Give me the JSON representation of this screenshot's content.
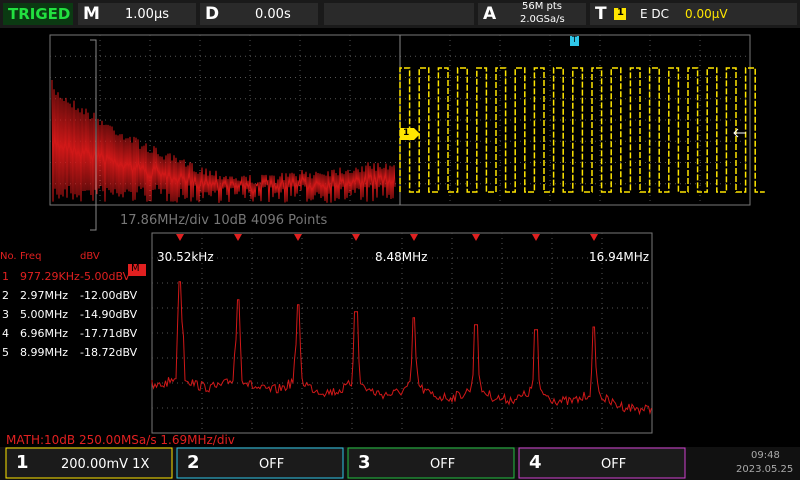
{
  "top_bar": {
    "status": "TRIGED",
    "timebase_key": "M",
    "timebase": "1.00µs",
    "delay_key": "D",
    "delay": "0.00s",
    "acq_key": "A",
    "memory": "56M pts",
    "sample_rate": "2.0GSa/s",
    "trigger_key": "T",
    "trigger_channel": "1",
    "trigger_mode": "E DC",
    "trigger_level": "0.00µV"
  },
  "main_view": {
    "overlay": "17.86MHz/div  10dB  4096 Points",
    "trigger_marker": "T",
    "channel_marker": "1"
  },
  "zoom_view": {
    "marker": "M",
    "freq_labels": [
      "30.52kHz",
      "8.48MHz",
      "16.94MHz"
    ]
  },
  "peak_table": {
    "headers": [
      "No.",
      "Freq",
      "dBV"
    ],
    "rows": [
      [
        "1",
        "977.29KHz",
        "-5.00dBV"
      ],
      [
        "2",
        "2.97MHz",
        "-12.00dBV"
      ],
      [
        "3",
        "5.00MHz",
        "-14.90dBV"
      ],
      [
        "4",
        "6.96MHz",
        "-17.71dBV"
      ],
      [
        "5",
        "8.99MHz",
        "-18.72dBV"
      ]
    ]
  },
  "math_info": "MATH:10dB 250.00MSa/s 1.69MHz/div",
  "channels": [
    {
      "number": "1",
      "setting": "200.00mV 1X"
    },
    {
      "number": "2",
      "setting": "OFF"
    },
    {
      "number": "3",
      "setting": "OFF"
    },
    {
      "number": "4",
      "setting": "OFF"
    }
  ],
  "clock": {
    "time": "09:48",
    "date": "2023.05.25"
  }
}
